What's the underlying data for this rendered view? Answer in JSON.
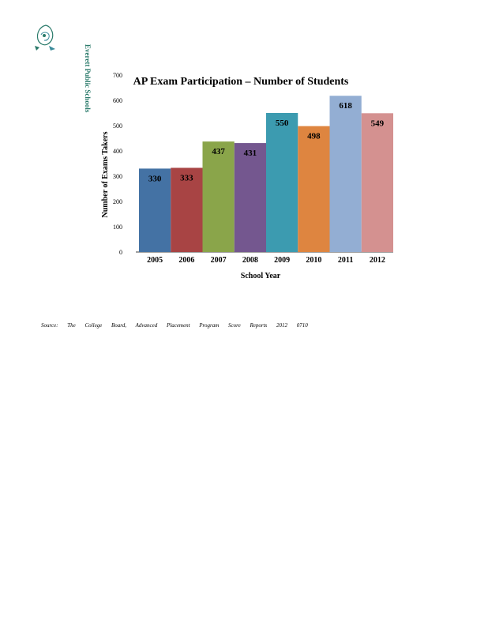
{
  "header": {
    "logo_text": "Everett Public Schools"
  },
  "chart_data": {
    "type": "bar",
    "title": "AP Exam Participation  – Number  of  Students",
    "xlabel": "School   Year",
    "ylabel": "Number   of   Exams  Takers",
    "categories": [
      "2005",
      "2006",
      "2007",
      "2008",
      "2009",
      "2010",
      "2011",
      "2012"
    ],
    "values": [
      330,
      333,
      437,
      431,
      550,
      498,
      618,
      549
    ],
    "colors": [
      "#4472a4",
      "#a84444",
      "#8aa54a",
      "#74578f",
      "#3c9bb0",
      "#de8540",
      "#93aed3",
      "#d49190"
    ],
    "ylim": [
      0,
      700
    ],
    "yticks": [
      0,
      100,
      200,
      300,
      400,
      500,
      600,
      700
    ],
    "grid": false,
    "legend": "none"
  },
  "footer": {
    "source": "Source:   The   College   Board,   Advanced   Placement   Program   Score   Reports   2012   0710"
  }
}
